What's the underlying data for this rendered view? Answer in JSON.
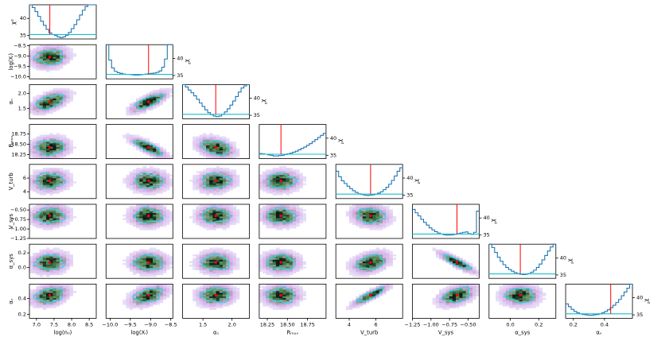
{
  "chart_data": {
    "type": "corner",
    "title": "",
    "parameters": [
      {
        "key": "n0",
        "label": "log(n₀)",
        "range": [
          6.8,
          8.7
        ],
        "ticks": [
          7.0,
          7.5,
          8.0,
          8.5
        ],
        "tick_labels": [
          "7.0",
          "7.5",
          "8.0",
          "8.5"
        ],
        "best": 7.38
      },
      {
        "key": "Xi",
        "label": "log(Xᵢ)",
        "range": [
          -10.1,
          -8.45
        ],
        "ticks": [
          -10.0,
          -9.5,
          -9.0,
          -8.5
        ],
        "tick_labels": [
          "−10.0",
          "−9.5",
          "−9.0",
          "−8.5"
        ],
        "best": -9.05
      },
      {
        "key": "alpha_n",
        "label": "αₙ",
        "range": [
          1.15,
          2.3
        ],
        "ticks": [
          1.5,
          2.0
        ],
        "tick_labels": [
          "1.5",
          "2.0"
        ],
        "best": 1.72
      },
      {
        "key": "Rmax",
        "label": "Rₘₐₓ",
        "range": [
          18.15,
          18.98
        ],
        "ticks": [
          18.25,
          18.5,
          18.75
        ],
        "tick_labels": [
          "18.25",
          "18.50",
          "18.75"
        ],
        "best": 18.42
      },
      {
        "key": "Vturb",
        "label": "V_turb",
        "range": [
          3.0,
          8.0
        ],
        "ticks": [
          4,
          6
        ],
        "tick_labels": [
          "4",
          "6"
        ],
        "best": 5.6
      },
      {
        "key": "Vsys",
        "label": "V_sys",
        "range": [
          -1.25,
          -0.35
        ],
        "ticks": [
          -1.25,
          -1.0,
          -0.75,
          -0.5
        ],
        "tick_labels": [
          "−1.25",
          "−1.00",
          "−0.75",
          "−0.50"
        ],
        "best": -0.65
      },
      {
        "key": "alpha_sys",
        "label": "α_sys",
        "range": [
          -0.15,
          0.32
        ],
        "ticks": [
          0.0,
          0.2
        ],
        "tick_labels": [
          "0.0",
          "0.2"
        ],
        "best": 0.07
      },
      {
        "key": "alpha_v",
        "label": "αᵥ",
        "range": [
          0.15,
          0.58
        ],
        "ticks": [
          0.2,
          0.4
        ],
        "tick_labels": [
          "0.2",
          "0.4"
        ],
        "best": 0.44
      }
    ],
    "chi2_axis": {
      "label": "χ²",
      "range": [
        34,
        44
      ],
      "ticks": [
        35,
        40
      ],
      "tick_labels": [
        "35",
        "40"
      ],
      "min_line": 35.3
    },
    "chi2_profiles": [
      [
        44,
        43.2,
        42,
        40.6,
        39.2,
        38,
        36.8,
        35.8,
        35.3,
        35.0,
        34.6,
        34.4,
        34.6,
        35.1,
        35.9,
        37,
        38.2,
        39.6,
        41,
        42.4,
        43.5,
        44,
        44,
        44
      ],
      [
        44,
        39.5,
        37.2,
        36.2,
        35.8,
        35.6,
        35.4,
        35.3,
        35.3,
        35.2,
        35.1,
        35.1,
        35.2,
        35.3,
        35.4,
        35.5,
        35.6,
        35.7,
        35.9,
        36.3,
        37.4,
        39.8,
        44,
        44
      ],
      [
        44,
        43.3,
        42.4,
        41.6,
        40.7,
        39.7,
        38.6,
        37.6,
        36.6,
        35.8,
        35.2,
        34.8,
        34.6,
        34.8,
        35.3,
        36,
        36.9,
        38,
        39.2,
        40.5,
        41.8,
        43,
        43.6,
        44
      ],
      [
        35.5,
        35.4,
        35.3,
        35.1,
        35.0,
        34.8,
        34.8,
        34.9,
        35.0,
        35.2,
        35.4,
        35.6,
        35.9,
        36.2,
        36.6,
        37.0,
        37.4,
        37.9,
        38.4,
        39.0,
        39.6,
        40.2,
        40.8,
        41.4
      ],
      [
        42,
        40.4,
        39.2,
        38.4,
        37.6,
        36.9,
        36.3,
        35.8,
        35.4,
        35.2,
        35.0,
        34.9,
        35.0,
        35.1,
        35.3,
        35.6,
        36.0,
        36.6,
        37.3,
        38.2,
        39.3,
        40.6,
        42,
        43
      ],
      [
        42.5,
        41.5,
        40.6,
        39.6,
        38.7,
        37.9,
        37.1,
        36.5,
        36,
        35.6,
        35.3,
        35.1,
        35.0,
        35.0,
        35.1,
        35.2,
        35.4,
        35.6,
        35.8,
        35.9,
        35.4,
        35.2,
        35.8,
        42
      ],
      [
        44,
        43,
        41.6,
        40.2,
        39,
        38,
        37.2,
        36.6,
        36.1,
        35.7,
        35.4,
        35.2,
        35.1,
        35.2,
        35.4,
        35.8,
        36.4,
        37.2,
        38.2,
        39.4,
        40.7,
        42,
        43.2,
        44
      ],
      [
        38.2,
        37.4,
        36.6,
        36.0,
        35.6,
        35.3,
        35.1,
        35.0,
        34.9,
        34.9,
        35.0,
        35.1,
        35.3,
        35.6,
        36.0,
        36.5,
        37.1,
        37.8,
        38.6,
        39.5,
        40.6,
        41.7,
        42.8,
        44
      ]
    ],
    "pair_correlations": {
      "1-0": 0.15,
      "2-0": 0.55,
      "2-1": 0.75,
      "3-0": 0.1,
      "3-1": -0.82,
      "3-2": -0.35,
      "4-0": 0.1,
      "4-1": 0.0,
      "4-2": 0.1,
      "4-3": 0.05,
      "5-0": 0.1,
      "5-1": 0.0,
      "5-2": 0.0,
      "5-3": 0.0,
      "5-4": -0.15,
      "6-0": 0.1,
      "6-1": 0.0,
      "6-2": 0.0,
      "6-3": 0.0,
      "6-4": 0.35,
      "6-5": -0.88,
      "7-0": 0.3,
      "7-1": 0.45,
      "7-2": 0.1,
      "7-3": 0.0,
      "7-4": 0.88,
      "7-5": 0.45,
      "7-6": 0.0
    },
    "colors": {
      "step_line": "#1f77b4",
      "best_marker": "#ff0000",
      "chi2_min_line": "#17becf",
      "contour": "#2fd2f0",
      "density_low": "#d8b0e8",
      "density_mid": "#58925a",
      "density_high": "#0a1e1a"
    }
  }
}
